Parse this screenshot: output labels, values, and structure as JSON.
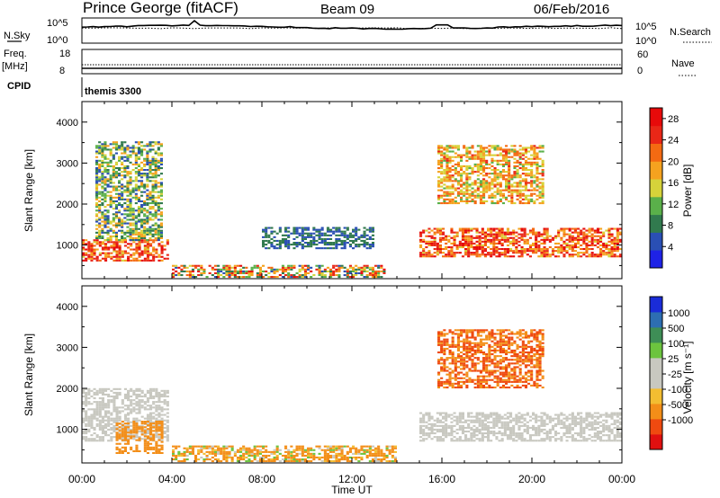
{
  "header": {
    "station": "Prince George (fitACF)",
    "beam": "Beam 09",
    "date": "06/Feb/2016"
  },
  "top_panels": {
    "nsky_label": "N.Sky",
    "nsearch_label": "N.Search",
    "noise_ticks": [
      "10^5",
      "10^0"
    ],
    "freq_label": "Freq.",
    "freq_unit": "[MHz]",
    "freq_ticks": [
      "18",
      "8"
    ],
    "nave_label": "Nave",
    "nave_ticks": [
      "60",
      "0"
    ],
    "cpid_label": "CPID",
    "cpid_value": "themis 3300"
  },
  "colors": {
    "power_scale": [
      "#1e22e6",
      "#2a4fb4",
      "#317a4e",
      "#5ab04a",
      "#d6d33a",
      "#f5a21f",
      "#f46a12",
      "#e92717",
      "#e70a0a"
    ],
    "velocity_scale": [
      "#e01010",
      "#ef4a10",
      "#f38e18",
      "#f3bd31",
      "#c8c8c0",
      "#c8c8c0",
      "#6cc43e",
      "#3e8e56",
      "#2d6eb2",
      "#1a2cd8"
    ],
    "ground_scatter": "#c8c8c0"
  },
  "chart_data": [
    {
      "type": "heatmap",
      "title": "Power",
      "xlabel": "Time UT",
      "ylabel": "Slant Range [km]",
      "xlim": [
        "00:00",
        "24:00"
      ],
      "ylim": [
        180,
        4500
      ],
      "x_ticks": [
        "00:00",
        "04:00",
        "08:00",
        "12:00",
        "16:00",
        "20:00",
        "00:00"
      ],
      "y_ticks": [
        "1000",
        "2000",
        "3000",
        "4000"
      ],
      "colorbar": {
        "label": "Power [dB]",
        "range": [
          0,
          30
        ],
        "ticks": [
          "4",
          "8",
          "12",
          "16",
          "20",
          "24",
          "28"
        ]
      },
      "regions": [
        {
          "t": [
            0.0,
            3.8
          ],
          "range_km": [
            600,
            1100
          ],
          "power_db": [
            16,
            30
          ]
        },
        {
          "t": [
            0.6,
            3.6
          ],
          "range_km": [
            1100,
            3500
          ],
          "power_db": [
            4,
            20
          ]
        },
        {
          "t": [
            4.0,
            13.5
          ],
          "range_km": [
            200,
            500
          ],
          "power_db": [
            4,
            28
          ]
        },
        {
          "t": [
            8.0,
            13.0
          ],
          "range_km": [
            900,
            1400
          ],
          "power_db": [
            4,
            10
          ]
        },
        {
          "t": [
            15.0,
            24.0
          ],
          "range_km": [
            700,
            1400
          ],
          "power_db": [
            16,
            30
          ]
        },
        {
          "t": [
            15.8,
            20.5
          ],
          "range_km": [
            2000,
            3400
          ],
          "power_db": [
            12,
            24
          ]
        }
      ]
    },
    {
      "type": "heatmap",
      "title": "Velocity",
      "xlabel": "Time UT",
      "ylabel": "Slant Range [km]",
      "xlim": [
        "00:00",
        "24:00"
      ],
      "ylim": [
        180,
        4500
      ],
      "x_ticks": [
        "00:00",
        "04:00",
        "08:00",
        "12:00",
        "16:00",
        "20:00",
        "00:00"
      ],
      "y_ticks": [
        "1000",
        "2000",
        "3000",
        "4000"
      ],
      "colorbar": {
        "label": "Velocity [m s⁻¹]",
        "range": [
          -1000,
          1000
        ],
        "ticks": [
          "1000",
          "500",
          "100",
          "25",
          "-25",
          "-100",
          "-500",
          "-1000"
        ]
      },
      "regions": [
        {
          "t": [
            0.0,
            3.8
          ],
          "range_km": [
            700,
            2000
          ],
          "velocity": "ground scatter"
        },
        {
          "t": [
            1.5,
            3.6
          ],
          "range_km": [
            400,
            1200
          ],
          "velocity_ms": [
            -500,
            -100
          ]
        },
        {
          "t": [
            4.0,
            14.0
          ],
          "range_km": [
            200,
            600
          ],
          "velocity_ms": [
            -500,
            100
          ]
        },
        {
          "t": [
            15.0,
            24.0
          ],
          "range_km": [
            700,
            1400
          ],
          "velocity": "ground scatter"
        },
        {
          "t": [
            15.8,
            20.5
          ],
          "range_km": [
            2000,
            3400
          ],
          "velocity_ms": [
            -1000,
            -100
          ]
        }
      ]
    }
  ]
}
